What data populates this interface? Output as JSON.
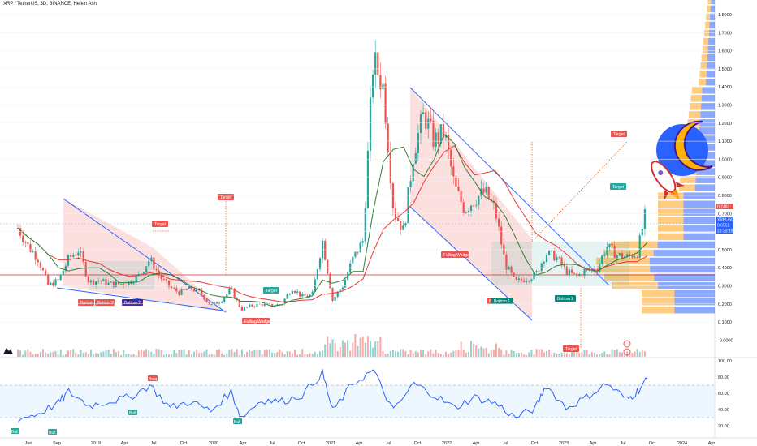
{
  "header": {
    "symbol_title": "XRP / TetherUS, 3D, BINANCE, Heikin Ashi"
  },
  "colors": {
    "up": "#26a69a",
    "down": "#ef5350",
    "wedge": "#2962ff",
    "rsi": "#2962ff",
    "ma_red": "#e53935",
    "ma_green": "#2e7d32",
    "vp_blue": "#2962ff",
    "vp_orange": "#ffb74d",
    "support": "#d32f2f"
  },
  "price_axis": {
    "ticks": [
      "1.8000",
      "1.7000",
      "1.6000",
      "1.5000",
      "1.4000",
      "1.3000",
      "1.2000",
      "1.1000",
      "1.0000",
      "0.9000",
      "0.8000",
      "0.7000",
      "0.6000",
      "0.5000",
      "0.4000",
      "0.3000",
      "0.2000",
      "0.1000",
      "-0.0000"
    ],
    "badges": [
      {
        "label": "0.7463",
        "color": "#ef5350"
      },
      {
        "label": "XRPUSDT",
        "color": "#2962ff"
      },
      {
        "label": "0.6561",
        "color": "#2962ff"
      },
      {
        "label": "23:33:19",
        "color": "#2962ff"
      }
    ]
  },
  "rsi_axis": {
    "ticks": [
      "100.00",
      "80.00",
      "60.00",
      "40.00",
      "20.00"
    ]
  },
  "time_axis": {
    "ticks": [
      "Jun",
      "Sep",
      "2019",
      "Apr",
      "Jul",
      "Oct",
      "2020",
      "Apr",
      "Jul",
      "Oct",
      "2021",
      "Apr",
      "Jul",
      "Oct",
      "2022",
      "Apr",
      "Jul",
      "Oct",
      "2023",
      "Apr",
      "Jul",
      "Oct",
      "2024",
      "Apr"
    ]
  },
  "annotations": {
    "targets": [
      "Target",
      "Target",
      "Target",
      "Target",
      "Target",
      "Target"
    ],
    "bottoms": [
      "Bottom",
      "Bottom 2",
      "Bottom 2",
      "Bottom",
      "Bottom 1",
      "Bottom 2"
    ],
    "wedges": [
      "Falling Wedge",
      "Falling Wedge"
    ],
    "rsi_tags": [
      "Bull",
      "Bear",
      "Bull",
      "Bull",
      "Bull"
    ]
  },
  "chart_data": {
    "type": "candlestick",
    "title": "XRP / TetherUS, 3D, BINANCE, Heikin Ashi",
    "xlim": [
      "2018-05",
      "2024-05"
    ],
    "ylim": [
      -0.05,
      1.9
    ],
    "price_path": [
      {
        "x": "2018-05",
        "y": 0.62
      },
      {
        "x": "2018-06",
        "y": 0.52
      },
      {
        "x": "2018-07",
        "y": 0.45
      },
      {
        "x": "2018-08",
        "y": 0.3
      },
      {
        "x": "2018-09",
        "y": 0.33
      },
      {
        "x": "2018-10",
        "y": 0.45
      },
      {
        "x": "2018-11",
        "y": 0.5
      },
      {
        "x": "2018-12",
        "y": 0.32
      },
      {
        "x": "2019-01",
        "y": 0.33
      },
      {
        "x": "2019-02",
        "y": 0.31
      },
      {
        "x": "2019-03",
        "y": 0.31
      },
      {
        "x": "2019-04",
        "y": 0.32
      },
      {
        "x": "2019-05",
        "y": 0.36
      },
      {
        "x": "2019-06",
        "y": 0.45
      },
      {
        "x": "2019-07",
        "y": 0.35
      },
      {
        "x": "2019-08",
        "y": 0.29
      },
      {
        "x": "2019-09",
        "y": 0.26
      },
      {
        "x": "2019-10",
        "y": 0.29
      },
      {
        "x": "2019-11",
        "y": 0.26
      },
      {
        "x": "2019-12",
        "y": 0.19
      },
      {
        "x": "2020-01",
        "y": 0.22
      },
      {
        "x": "2020-02",
        "y": 0.28
      },
      {
        "x": "2020-03",
        "y": 0.17
      },
      {
        "x": "2020-04",
        "y": 0.19
      },
      {
        "x": "2020-05",
        "y": 0.2
      },
      {
        "x": "2020-06",
        "y": 0.19
      },
      {
        "x": "2020-07",
        "y": 0.2
      },
      {
        "x": "2020-08",
        "y": 0.29
      },
      {
        "x": "2020-09",
        "y": 0.24
      },
      {
        "x": "2020-10",
        "y": 0.25
      },
      {
        "x": "2020-11",
        "y": 0.55
      },
      {
        "x": "2020-12",
        "y": 0.22
      },
      {
        "x": "2021-01",
        "y": 0.3
      },
      {
        "x": "2021-02",
        "y": 0.45
      },
      {
        "x": "2021-03",
        "y": 0.55
      },
      {
        "x": "2021-04",
        "y": 1.55
      },
      {
        "x": "2021-05",
        "y": 1.4
      },
      {
        "x": "2021-06",
        "y": 0.72
      },
      {
        "x": "2021-07",
        "y": 0.6
      },
      {
        "x": "2021-08",
        "y": 1.05
      },
      {
        "x": "2021-09",
        "y": 1.25
      },
      {
        "x": "2021-10",
        "y": 1.1
      },
      {
        "x": "2021-11",
        "y": 1.15
      },
      {
        "x": "2021-12",
        "y": 0.85
      },
      {
        "x": "2022-01",
        "y": 0.72
      },
      {
        "x": "2022-02",
        "y": 0.78
      },
      {
        "x": "2022-03",
        "y": 0.82
      },
      {
        "x": "2022-04",
        "y": 0.72
      },
      {
        "x": "2022-05",
        "y": 0.42
      },
      {
        "x": "2022-06",
        "y": 0.32
      },
      {
        "x": "2022-07",
        "y": 0.34
      },
      {
        "x": "2022-08",
        "y": 0.36
      },
      {
        "x": "2022-09",
        "y": 0.48
      },
      {
        "x": "2022-10",
        "y": 0.46
      },
      {
        "x": "2022-11",
        "y": 0.38
      },
      {
        "x": "2022-12",
        "y": 0.35
      },
      {
        "x": "2023-01",
        "y": 0.39
      },
      {
        "x": "2023-02",
        "y": 0.39
      },
      {
        "x": "2023-03",
        "y": 0.52
      },
      {
        "x": "2023-04",
        "y": 0.47
      },
      {
        "x": "2023-05",
        "y": 0.46
      },
      {
        "x": "2023-06",
        "y": 0.48
      },
      {
        "x": "2023-07",
        "y": 0.75
      }
    ],
    "rsi_path": [
      {
        "x": "2018-05",
        "y": 28
      },
      {
        "x": "2018-07",
        "y": 35
      },
      {
        "x": "2018-09",
        "y": 48
      },
      {
        "x": "2018-10",
        "y": 62
      },
      {
        "x": "2018-12",
        "y": 45
      },
      {
        "x": "2019-02",
        "y": 50
      },
      {
        "x": "2019-04",
        "y": 55
      },
      {
        "x": "2019-06",
        "y": 70
      },
      {
        "x": "2019-08",
        "y": 42
      },
      {
        "x": "2019-10",
        "y": 50
      },
      {
        "x": "2019-12",
        "y": 38
      },
      {
        "x": "2020-02",
        "y": 62
      },
      {
        "x": "2020-03",
        "y": 30
      },
      {
        "x": "2020-05",
        "y": 52
      },
      {
        "x": "2020-07",
        "y": 50
      },
      {
        "x": "2020-09",
        "y": 58
      },
      {
        "x": "2020-11",
        "y": 85
      },
      {
        "x": "2020-12",
        "y": 38
      },
      {
        "x": "2021-02",
        "y": 72
      },
      {
        "x": "2021-04",
        "y": 88
      },
      {
        "x": "2021-06",
        "y": 38
      },
      {
        "x": "2021-08",
        "y": 72
      },
      {
        "x": "2021-10",
        "y": 58
      },
      {
        "x": "2021-12",
        "y": 42
      },
      {
        "x": "2022-02",
        "y": 55
      },
      {
        "x": "2022-04",
        "y": 48
      },
      {
        "x": "2022-06",
        "y": 30
      },
      {
        "x": "2022-08",
        "y": 42
      },
      {
        "x": "2022-09",
        "y": 70
      },
      {
        "x": "2022-11",
        "y": 42
      },
      {
        "x": "2023-01",
        "y": 55
      },
      {
        "x": "2023-03",
        "y": 72
      },
      {
        "x": "2023-05",
        "y": 52
      },
      {
        "x": "2023-06",
        "y": 62
      },
      {
        "x": "2023-07",
        "y": 78
      }
    ],
    "rsi_band": [
      30,
      70
    ]
  }
}
